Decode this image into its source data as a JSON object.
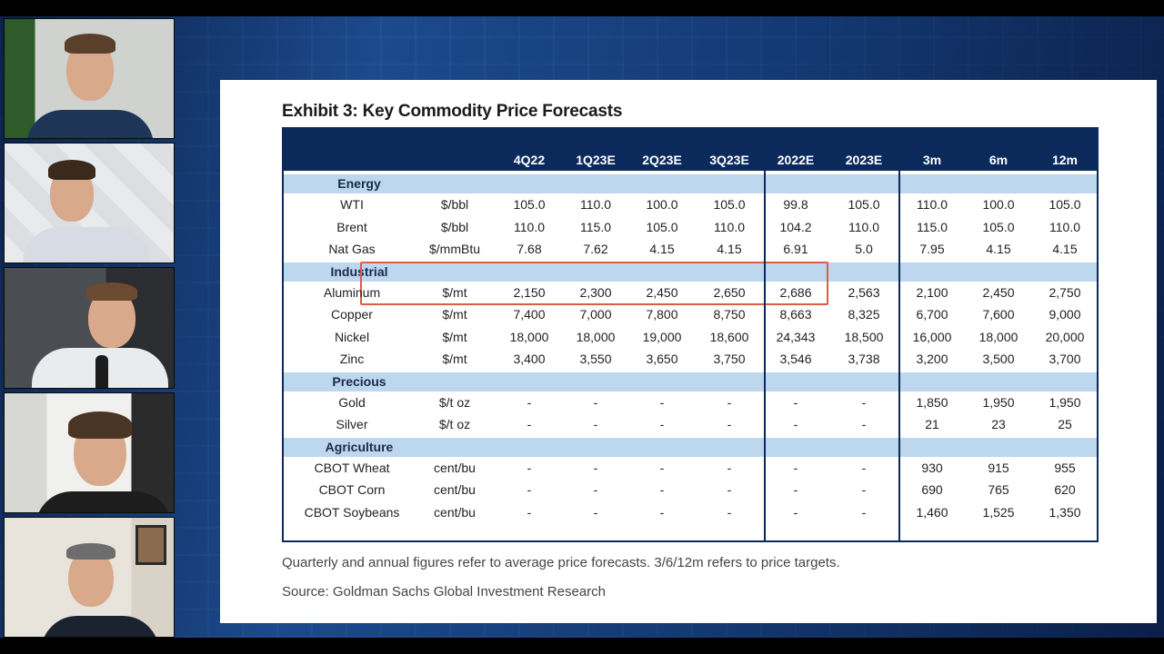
{
  "exhibit_title": "Exhibit 3: Key Commodity Price Forecasts",
  "columns": [
    "4Q22",
    "1Q23E",
    "2Q23E",
    "3Q23E",
    "2022E",
    "2023E",
    "3m",
    "6m",
    "12m"
  ],
  "sections": [
    {
      "name": "Energy",
      "rows": [
        {
          "name": "WTI",
          "unit": "$/bbl",
          "values": [
            "105.0",
            "110.0",
            "100.0",
            "105.0",
            "99.8",
            "105.0",
            "110.0",
            "100.0",
            "105.0"
          ]
        },
        {
          "name": "Brent",
          "unit": "$/bbl",
          "values": [
            "110.0",
            "115.0",
            "105.0",
            "110.0",
            "104.2",
            "110.0",
            "115.0",
            "105.0",
            "110.0"
          ]
        },
        {
          "name": "Nat Gas",
          "unit": "$/mmBtu",
          "values": [
            "7.68",
            "7.62",
            "4.15",
            "4.15",
            "6.91",
            "5.0",
            "7.95",
            "4.15",
            "4.15"
          ]
        }
      ]
    },
    {
      "name": "Industrial",
      "rows": [
        {
          "name": "Aluminum",
          "unit": "$/mt",
          "values": [
            "2,150",
            "2,300",
            "2,450",
            "2,650",
            "2,686",
            "2,563",
            "2,100",
            "2,450",
            "2,750"
          ]
        },
        {
          "name": "Copper",
          "unit": "$/mt",
          "values": [
            "7,400",
            "7,000",
            "7,800",
            "8,750",
            "8,663",
            "8,325",
            "6,700",
            "7,600",
            "9,000"
          ]
        },
        {
          "name": "Nickel",
          "unit": "$/mt",
          "values": [
            "18,000",
            "18,000",
            "19,000",
            "18,600",
            "24,343",
            "18,500",
            "16,000",
            "18,000",
            "20,000"
          ]
        },
        {
          "name": "Zinc",
          "unit": "$/mt",
          "values": [
            "3,400",
            "3,550",
            "3,650",
            "3,750",
            "3,546",
            "3,738",
            "3,200",
            "3,500",
            "3,700"
          ]
        }
      ]
    },
    {
      "name": "Precious",
      "rows": [
        {
          "name": "Gold",
          "unit": "$/t oz",
          "values": [
            "-",
            "-",
            "-",
            "-",
            "-",
            "-",
            "1,850",
            "1,950",
            "1,950"
          ]
        },
        {
          "name": "Silver",
          "unit": "$/t oz",
          "values": [
            "-",
            "-",
            "-",
            "-",
            "-",
            "-",
            "21",
            "23",
            "25"
          ]
        }
      ]
    },
    {
      "name": "Agriculture",
      "rows": [
        {
          "name": "CBOT Wheat",
          "unit": "cent/bu",
          "values": [
            "-",
            "-",
            "-",
            "-",
            "-",
            "-",
            "930",
            "915",
            "955"
          ]
        },
        {
          "name": "CBOT Corn",
          "unit": "cent/bu",
          "values": [
            "-",
            "-",
            "-",
            "-",
            "-",
            "-",
            "690",
            "765",
            "620"
          ]
        },
        {
          "name": "CBOT Soybeans",
          "unit": "cent/bu",
          "values": [
            "-",
            "-",
            "-",
            "-",
            "-",
            "-",
            "1,460",
            "1,525",
            "1,350"
          ]
        }
      ]
    }
  ],
  "footnote": "Quarterly and annual figures refer to average price forecasts. 3/6/12m refers to price targets.",
  "source": "Source: Goldman Sachs Global Investment Research",
  "colors": {
    "header": "#0b2a5b",
    "section": "#bdd7ee",
    "highlight": "#e05a47"
  }
}
